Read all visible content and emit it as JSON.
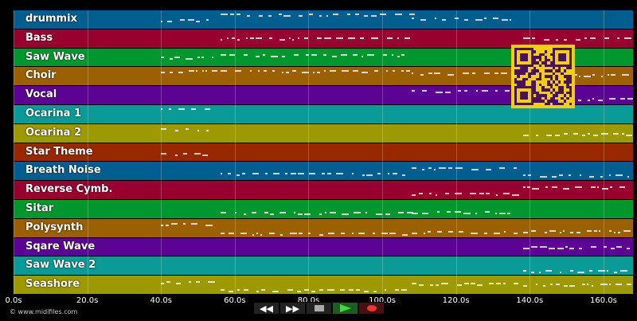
{
  "tracks": [
    {
      "name": "drummix",
      "color": "#005f8f"
    },
    {
      "name": "Bass",
      "color": "#98002f"
    },
    {
      "name": "Saw Wave",
      "color": "#00982e"
    },
    {
      "name": "Choir",
      "color": "#9b6100"
    },
    {
      "name": "Vocal",
      "color": "#5d0394"
    },
    {
      "name": "Ocarina 1",
      "color": "#0a9b96"
    },
    {
      "name": "Ocarina 2",
      "color": "#9c9a00"
    },
    {
      "name": "Star Theme",
      "color": "#982800"
    },
    {
      "name": "Breath Noise",
      "color": "#005f8f"
    },
    {
      "name": "Reverse Cymb.",
      "color": "#98002f"
    },
    {
      "name": "Sitar",
      "color": "#00982e"
    },
    {
      "name": "Polysynth",
      "color": "#9b6100"
    },
    {
      "name": "Sqare Wave",
      "color": "#5d0394"
    },
    {
      "name": "Saw Wave 2",
      "color": "#0a9b96"
    },
    {
      "name": "Seashore",
      "color": "#9c9a00"
    }
  ],
  "timeline": {
    "ticks": [
      "0.0s",
      "20.0s",
      "40.0s",
      "60.0s",
      "80.0s",
      "100.0s",
      "120.0s",
      "140.0s",
      "160.0s"
    ],
    "max_seconds": 168
  },
  "transport": {
    "rewind": "◀◀",
    "forward": "▶▶"
  },
  "copyright": "© www.midifiles.com",
  "qr": {
    "color": "#f5d000",
    "ink": "#4a1060"
  }
}
